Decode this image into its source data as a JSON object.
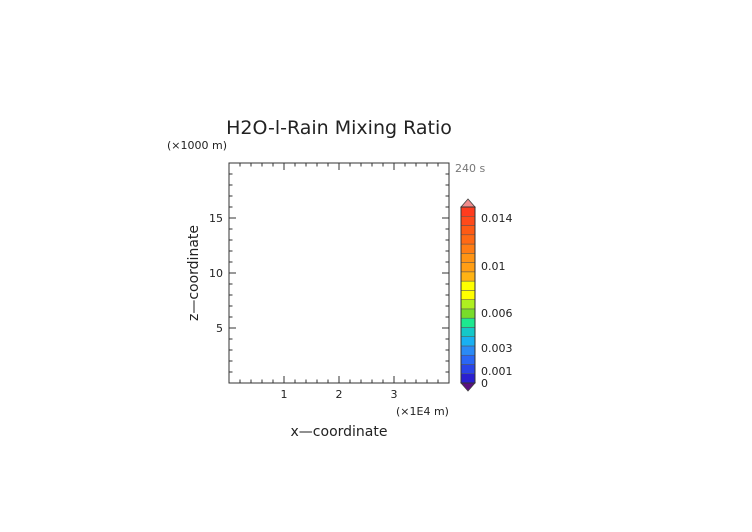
{
  "chart_data": {
    "type": "heatmap",
    "title": "H2O-l-Rain Mixing Ratio",
    "xlabel": "x—coordinate",
    "ylabel": "z—coordinate",
    "x_unit": "(×1E4 m)",
    "y_unit": "(×1000 m)",
    "time_label": "240 s",
    "xlim": [
      0,
      4
    ],
    "ylim": [
      0,
      20
    ],
    "x_ticks": [
      1,
      2,
      3
    ],
    "y_ticks": [
      5,
      10,
      15
    ],
    "x_tick_labels": [
      "1",
      "2",
      "3"
    ],
    "y_tick_labels": [
      "5",
      "10",
      "15"
    ],
    "data_present": false,
    "colorbar": {
      "ticks": [
        {
          "value": 0,
          "label": "0"
        },
        {
          "value": 0.001,
          "label": "0.001"
        },
        {
          "value": 0.003,
          "label": "0.003"
        },
        {
          "value": 0.006,
          "label": "0.006"
        },
        {
          "value": 0.01,
          "label": "0.01"
        },
        {
          "value": 0.014,
          "label": "0.014"
        }
      ],
      "colors": [
        "#2a1fd0",
        "#2a44e8",
        "#2a66f5",
        "#2a8af5",
        "#19b0f2",
        "#14c8c8",
        "#1de88f",
        "#78dc2a",
        "#aef020",
        "#ffff00",
        "#ffff00",
        "#ffb314",
        "#ff9e14",
        "#ff9414",
        "#ff7d14",
        "#ff6914",
        "#ff5a14",
        "#ff4a1a",
        "#ff3c1e"
      ],
      "under_color": "#5a1080",
      "over_color": "#f08c8c"
    }
  }
}
